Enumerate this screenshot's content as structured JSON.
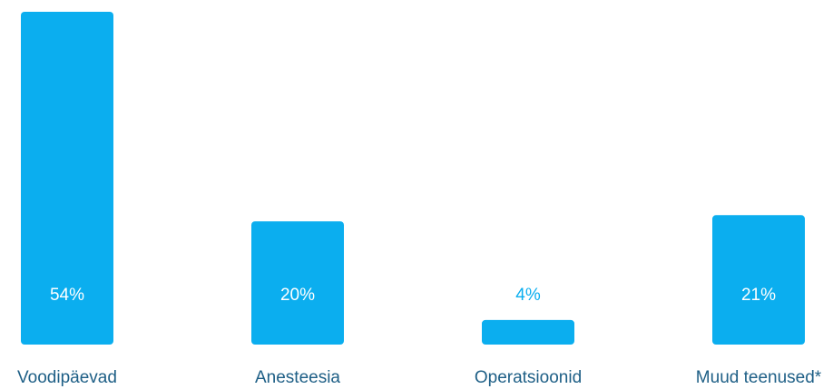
{
  "chart_data": {
    "type": "bar",
    "title": "",
    "xlabel": "",
    "ylabel": "",
    "categories": [
      "Voodipäevad",
      "Anesteesia",
      "Operatsioonid",
      "Muud teenused*"
    ],
    "values": [
      54,
      20,
      4,
      21
    ],
    "value_labels": [
      "54%",
      "20%",
      "4%",
      "21%"
    ],
    "ylim": [
      0,
      54
    ],
    "grid": false,
    "legend": "none",
    "colors": {
      "bar": "#0baeef",
      "label_inside": "#ffffff",
      "label_outside": "#0baeef",
      "category_text": "#1e5f86"
    }
  }
}
